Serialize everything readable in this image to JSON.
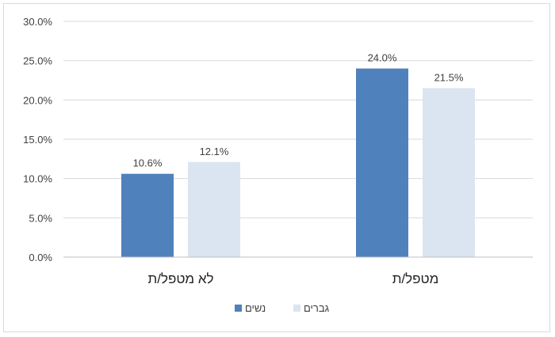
{
  "chart_data": {
    "type": "bar",
    "categories": [
      "לא מטפל/ת",
      "מטפל/ת"
    ],
    "series": [
      {
        "name": "נשים",
        "values": [
          10.6,
          24.0
        ],
        "color": "#4f81bd"
      },
      {
        "name": "גברים",
        "values": [
          12.1,
          21.5
        ],
        "color": "#dbe5f1"
      }
    ],
    "y_ticks": [
      "0.0%",
      "5.0%",
      "10.0%",
      "15.0%",
      "20.0%",
      "25.0%",
      "30.0%"
    ],
    "data_labels": [
      [
        "10.6%",
        "24.0%"
      ],
      [
        "12.1%",
        "21.5%"
      ]
    ],
    "ylim": [
      0,
      30
    ],
    "unit": "%",
    "grid": true,
    "legend": "bottom",
    "title": "",
    "xlabel": "",
    "ylabel": ""
  }
}
